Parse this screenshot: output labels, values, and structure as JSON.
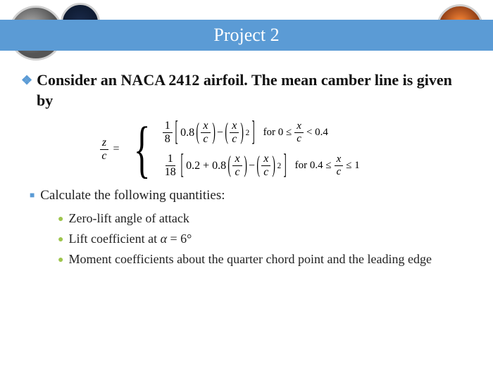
{
  "header": {
    "title": "Project 2"
  },
  "main": {
    "heading": "Consider an NACA 2412 airfoil. The mean camber line is given by"
  },
  "equation": {
    "lhs": {
      "num": "z",
      "den": "c"
    },
    "eq": "=",
    "case1": {
      "coef_num": "1",
      "coef_den": "8",
      "term1": "0.8",
      "xc_num": "x",
      "xc_den": "c",
      "minus": "−",
      "exp": "2",
      "cond_prefix": "for 0 ≤",
      "cond_frac_num": "x",
      "cond_frac_den": "c",
      "cond_suffix": "< 0.4"
    },
    "case2": {
      "coef_num": "1",
      "coef_den": "18",
      "term0": "0.2 + 0.8",
      "xc_num": "x",
      "xc_den": "c",
      "minus": "−",
      "exp": "2",
      "cond_prefix": "for 0.4 ≤",
      "cond_frac_num": "x",
      "cond_frac_den": "c",
      "cond_suffix": "≤ 1"
    }
  },
  "sub": {
    "heading": "Calculate the following quantities:"
  },
  "items": [
    "Zero-lift angle of attack",
    "Lift coefficient at α = 6°",
    "Moment coefficients about the quarter chord point and the leading edge"
  ],
  "style": {
    "accent": "#5b9bd5",
    "bullet_green": "#9ec54d",
    "circle_border": "#d0d0d0",
    "text": "#111111"
  }
}
